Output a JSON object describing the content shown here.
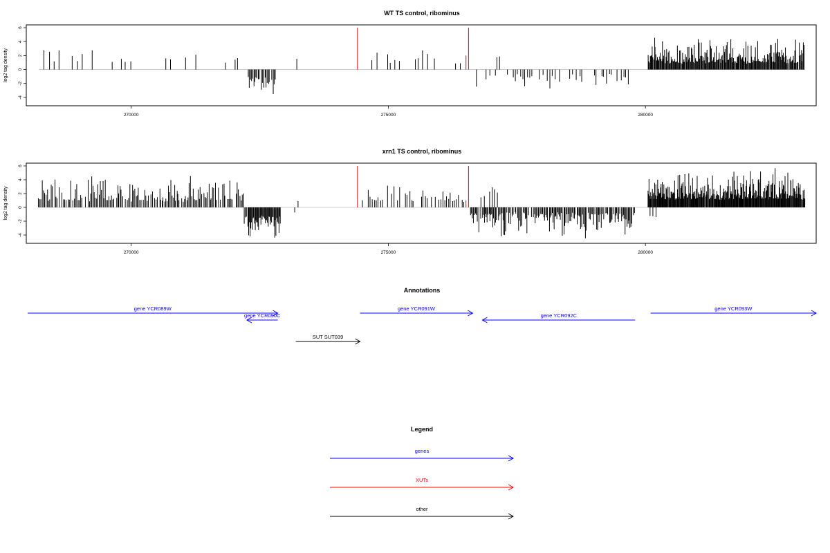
{
  "colors": {
    "gene": "#0000ff",
    "xut": "#ff0000",
    "other": "#000000",
    "baseline": "#bebebe",
    "bar": "#000000",
    "highlight": "#d42020"
  },
  "chart_data": [
    {
      "type": "bar",
      "title": "WT TS control, ribominus",
      "ylabel": "log2 tag density",
      "xlim": [
        267960,
        283320
      ],
      "ylim": [
        -5.2,
        6.4
      ],
      "yticks": [
        -4,
        -2,
        0,
        2,
        4,
        6
      ],
      "xticks": [
        270000,
        275000,
        280000
      ],
      "grid": false,
      "density_pattern": [
        {
          "from": 268200,
          "to": 272200,
          "sign": 1,
          "min": 0.8,
          "max": 3.4,
          "step": 95,
          "fill": 0.45
        },
        {
          "from": 272250,
          "to": 272800,
          "sign": -1,
          "min": 1.0,
          "max": 4.2,
          "step": 22,
          "fill": 0.95
        },
        {
          "from": 273100,
          "to": 273600,
          "sign": 1,
          "min": 0.8,
          "max": 3.0,
          "step": 110,
          "fill": 0.5
        },
        {
          "from": 274700,
          "to": 276500,
          "sign": 1,
          "min": 0.6,
          "max": 3.0,
          "step": 90,
          "fill": 0.5
        },
        {
          "from": 276700,
          "to": 279800,
          "sign": -1,
          "min": 0.6,
          "max": 3.4,
          "step": 48,
          "fill": 0.6
        },
        {
          "from": 277100,
          "to": 277200,
          "sign": 1,
          "min": 1.5,
          "max": 2.0,
          "step": 60,
          "fill": 1.0
        },
        {
          "from": 280050,
          "to": 283100,
          "sign": 1,
          "min": 0.8,
          "max": 5.0,
          "step": 14,
          "fill": 0.98
        }
      ],
      "highlight_bars": [
        {
          "x": 274400,
          "value": 6
        },
        {
          "x": 276560,
          "value": 6
        },
        {
          "x": 276510,
          "value": 2
        }
      ]
    },
    {
      "type": "bar",
      "title": "xrn1 TS control, ribominus",
      "ylabel": "log2 tag density",
      "xlim": [
        267960,
        283320
      ],
      "ylim": [
        -5.2,
        6.4
      ],
      "yticks": [
        -4,
        -2,
        0,
        2,
        4,
        6
      ],
      "xticks": [
        270000,
        275000,
        280000
      ],
      "grid": false,
      "density_pattern": [
        {
          "from": 268200,
          "to": 272200,
          "sign": 1,
          "min": 0.8,
          "max": 4.8,
          "step": 24,
          "fill": 0.85
        },
        {
          "from": 272200,
          "to": 272900,
          "sign": -1,
          "min": 1.0,
          "max": 5.0,
          "step": 14,
          "fill": 0.98
        },
        {
          "from": 273000,
          "to": 274200,
          "sign": 1,
          "min": 0.5,
          "max": 2.8,
          "step": 110,
          "fill": 0.35
        },
        {
          "from": 273000,
          "to": 274200,
          "sign": -1,
          "min": 0.5,
          "max": 1.8,
          "step": 180,
          "fill": 0.25
        },
        {
          "from": 274500,
          "to": 276500,
          "sign": 1,
          "min": 0.6,
          "max": 3.4,
          "step": 38,
          "fill": 0.75
        },
        {
          "from": 276600,
          "to": 279800,
          "sign": -1,
          "min": 0.6,
          "max": 4.6,
          "step": 18,
          "fill": 0.85
        },
        {
          "from": 276800,
          "to": 277200,
          "sign": 1,
          "min": 1.0,
          "max": 3.0,
          "step": 55,
          "fill": 0.8
        },
        {
          "from": 280050,
          "to": 283100,
          "sign": 1,
          "min": 1.0,
          "max": 5.8,
          "step": 11,
          "fill": 0.99
        },
        {
          "from": 280100,
          "to": 280200,
          "sign": -1,
          "min": 1.0,
          "max": 2.0,
          "step": 50,
          "fill": 1.0
        }
      ],
      "highlight_bars": [
        {
          "x": 274400,
          "value": 6
        },
        {
          "x": 276560,
          "value": 6
        },
        {
          "x": 276510,
          "value": 1
        }
      ]
    }
  ],
  "annotations": {
    "title": "Annotations",
    "features": [
      {
        "label": "gene YCR089W",
        "start": 267960,
        "end": 272850,
        "strand": "+",
        "type": "gene",
        "row": 0
      },
      {
        "label": "gene YCR090C",
        "start": 272250,
        "end": 272850,
        "strand": "-",
        "type": "gene",
        "row": 1
      },
      {
        "label": "SUT SUT039",
        "start": 273200,
        "end": 274450,
        "strand": "+",
        "type": "other",
        "row": 3
      },
      {
        "label": "gene YCR091W",
        "start": 274450,
        "end": 276640,
        "strand": "+",
        "type": "gene",
        "row": 0
      },
      {
        "label": "gene YCR092C",
        "start": 276830,
        "end": 279800,
        "strand": "-",
        "type": "gene",
        "row": 1
      },
      {
        "label": "gene YCR093W",
        "start": 280100,
        "end": 283320,
        "strand": "+",
        "type": "gene",
        "row": 0
      }
    ]
  },
  "legend": {
    "title": "Legend",
    "items": [
      {
        "label": "genes",
        "type": "gene"
      },
      {
        "label": "XUTs",
        "type": "xut"
      },
      {
        "label": "other",
        "type": "other"
      }
    ]
  }
}
